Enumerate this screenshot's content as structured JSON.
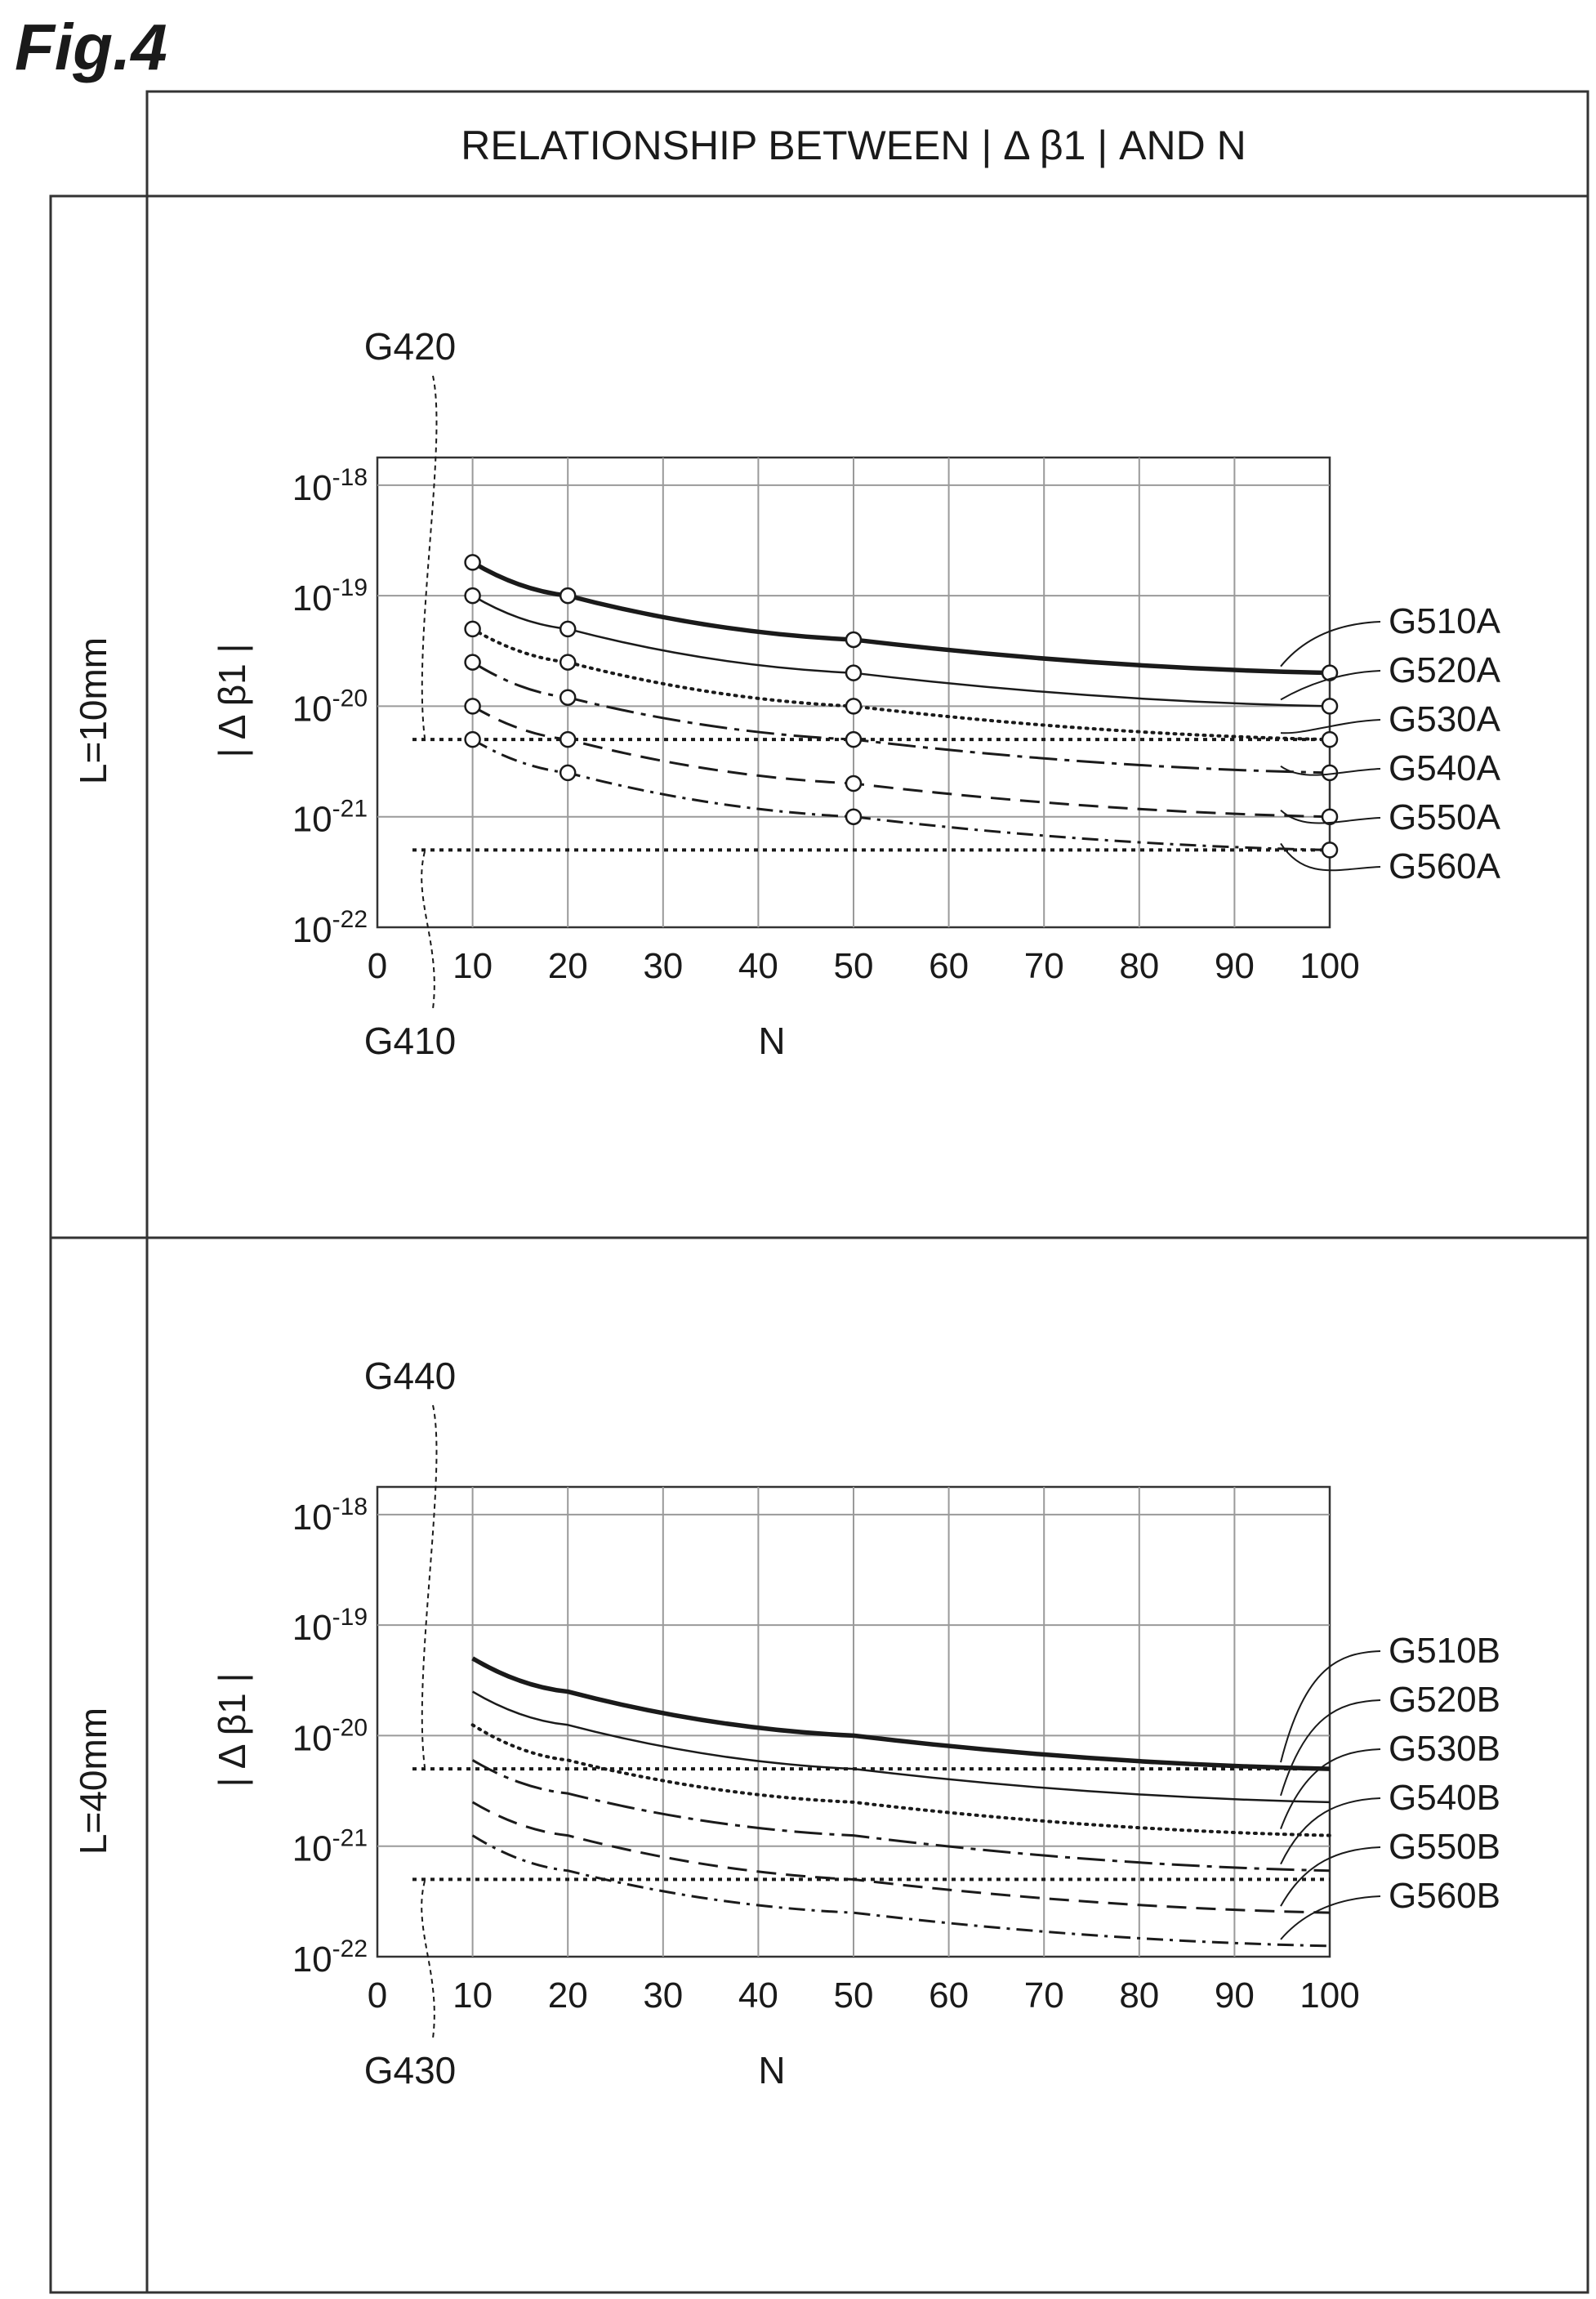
{
  "figure_label": "Fig.4",
  "header": "RELATIONSHIP BETWEEN | Δ β1 | AND N",
  "colors": {
    "line": "#1a1a1a",
    "grid": "#9a9a9a",
    "frame": "#333333",
    "background": "#ffffff"
  },
  "chart_data": [
    {
      "type": "line",
      "panel_label": "L=10mm",
      "xlabel": "N",
      "ylabel": "| Δ β1 |",
      "y_scale": "log",
      "xlim": [
        0,
        100
      ],
      "ylim": [
        1e-22,
        1e-18
      ],
      "x_ticks": [
        "0",
        "10",
        "20",
        "30",
        "40",
        "50",
        "60",
        "70",
        "80",
        "90",
        "100"
      ],
      "y_ticks": [
        {
          "base": "10",
          "exp": "-18"
        },
        {
          "base": "10",
          "exp": "-19"
        },
        {
          "base": "10",
          "exp": "-20"
        },
        {
          "base": "10",
          "exp": "-21"
        },
        {
          "base": "10",
          "exp": "-22"
        }
      ],
      "grid": true,
      "markers": true,
      "x": [
        10,
        20,
        50,
        100
      ],
      "series": [
        {
          "name": "G510A",
          "style": "thick-solid",
          "values": [
            2e-19,
            1e-19,
            4e-20,
            2e-20
          ]
        },
        {
          "name": "G520A",
          "style": "solid",
          "values": [
            1e-19,
            5e-20,
            2e-20,
            1e-20
          ]
        },
        {
          "name": "G530A",
          "style": "dotted",
          "values": [
            5e-20,
            2.5e-20,
            1e-20,
            5e-21
          ]
        },
        {
          "name": "G540A",
          "style": "long-dash-dot",
          "values": [
            2.5e-20,
            1.2e-20,
            5e-21,
            2.5e-21
          ]
        },
        {
          "name": "G550A",
          "style": "dashed",
          "values": [
            1e-20,
            5e-21,
            2e-21,
            1e-21
          ]
        },
        {
          "name": "G560A",
          "style": "dash-dot",
          "values": [
            5e-21,
            2.5e-21,
            1e-21,
            5e-22
          ]
        }
      ],
      "thresholds": [
        {
          "name": "G420",
          "value": 5e-21
        },
        {
          "name": "G410",
          "value": 5e-22
        }
      ]
    },
    {
      "type": "line",
      "panel_label": "L=40mm",
      "xlabel": "N",
      "ylabel": "| Δ β1 |",
      "y_scale": "log",
      "xlim": [
        0,
        100
      ],
      "ylim": [
        1e-22,
        1e-18
      ],
      "x_ticks": [
        "0",
        "10",
        "20",
        "30",
        "40",
        "50",
        "60",
        "70",
        "80",
        "90",
        "100"
      ],
      "y_ticks": [
        {
          "base": "10",
          "exp": "-18"
        },
        {
          "base": "10",
          "exp": "-19"
        },
        {
          "base": "10",
          "exp": "-20"
        },
        {
          "base": "10",
          "exp": "-21"
        },
        {
          "base": "10",
          "exp": "-22"
        }
      ],
      "grid": true,
      "markers": false,
      "x": [
        10,
        20,
        50,
        100
      ],
      "series": [
        {
          "name": "G510B",
          "style": "thick-solid",
          "values": [
            5e-20,
            2.5e-20,
            1e-20,
            5e-21
          ]
        },
        {
          "name": "G520B",
          "style": "solid",
          "values": [
            2.5e-20,
            1.25e-20,
            5e-21,
            2.5e-21
          ]
        },
        {
          "name": "G530B",
          "style": "dotted",
          "values": [
            1.25e-20,
            6e-21,
            2.5e-21,
            1.25e-21
          ]
        },
        {
          "name": "G540B",
          "style": "long-dash-dot",
          "values": [
            6e-21,
            3e-21,
            1.25e-21,
            6e-22
          ]
        },
        {
          "name": "G550B",
          "style": "dashed",
          "values": [
            2.5e-21,
            1.25e-21,
            5e-22,
            2.5e-22
          ]
        },
        {
          "name": "G560B",
          "style": "dash-dot",
          "values": [
            1.25e-21,
            6e-22,
            2.5e-22,
            1.25e-22
          ]
        }
      ],
      "thresholds": [
        {
          "name": "G440",
          "value": 5e-21
        },
        {
          "name": "G430",
          "value": 5e-22
        }
      ]
    }
  ]
}
